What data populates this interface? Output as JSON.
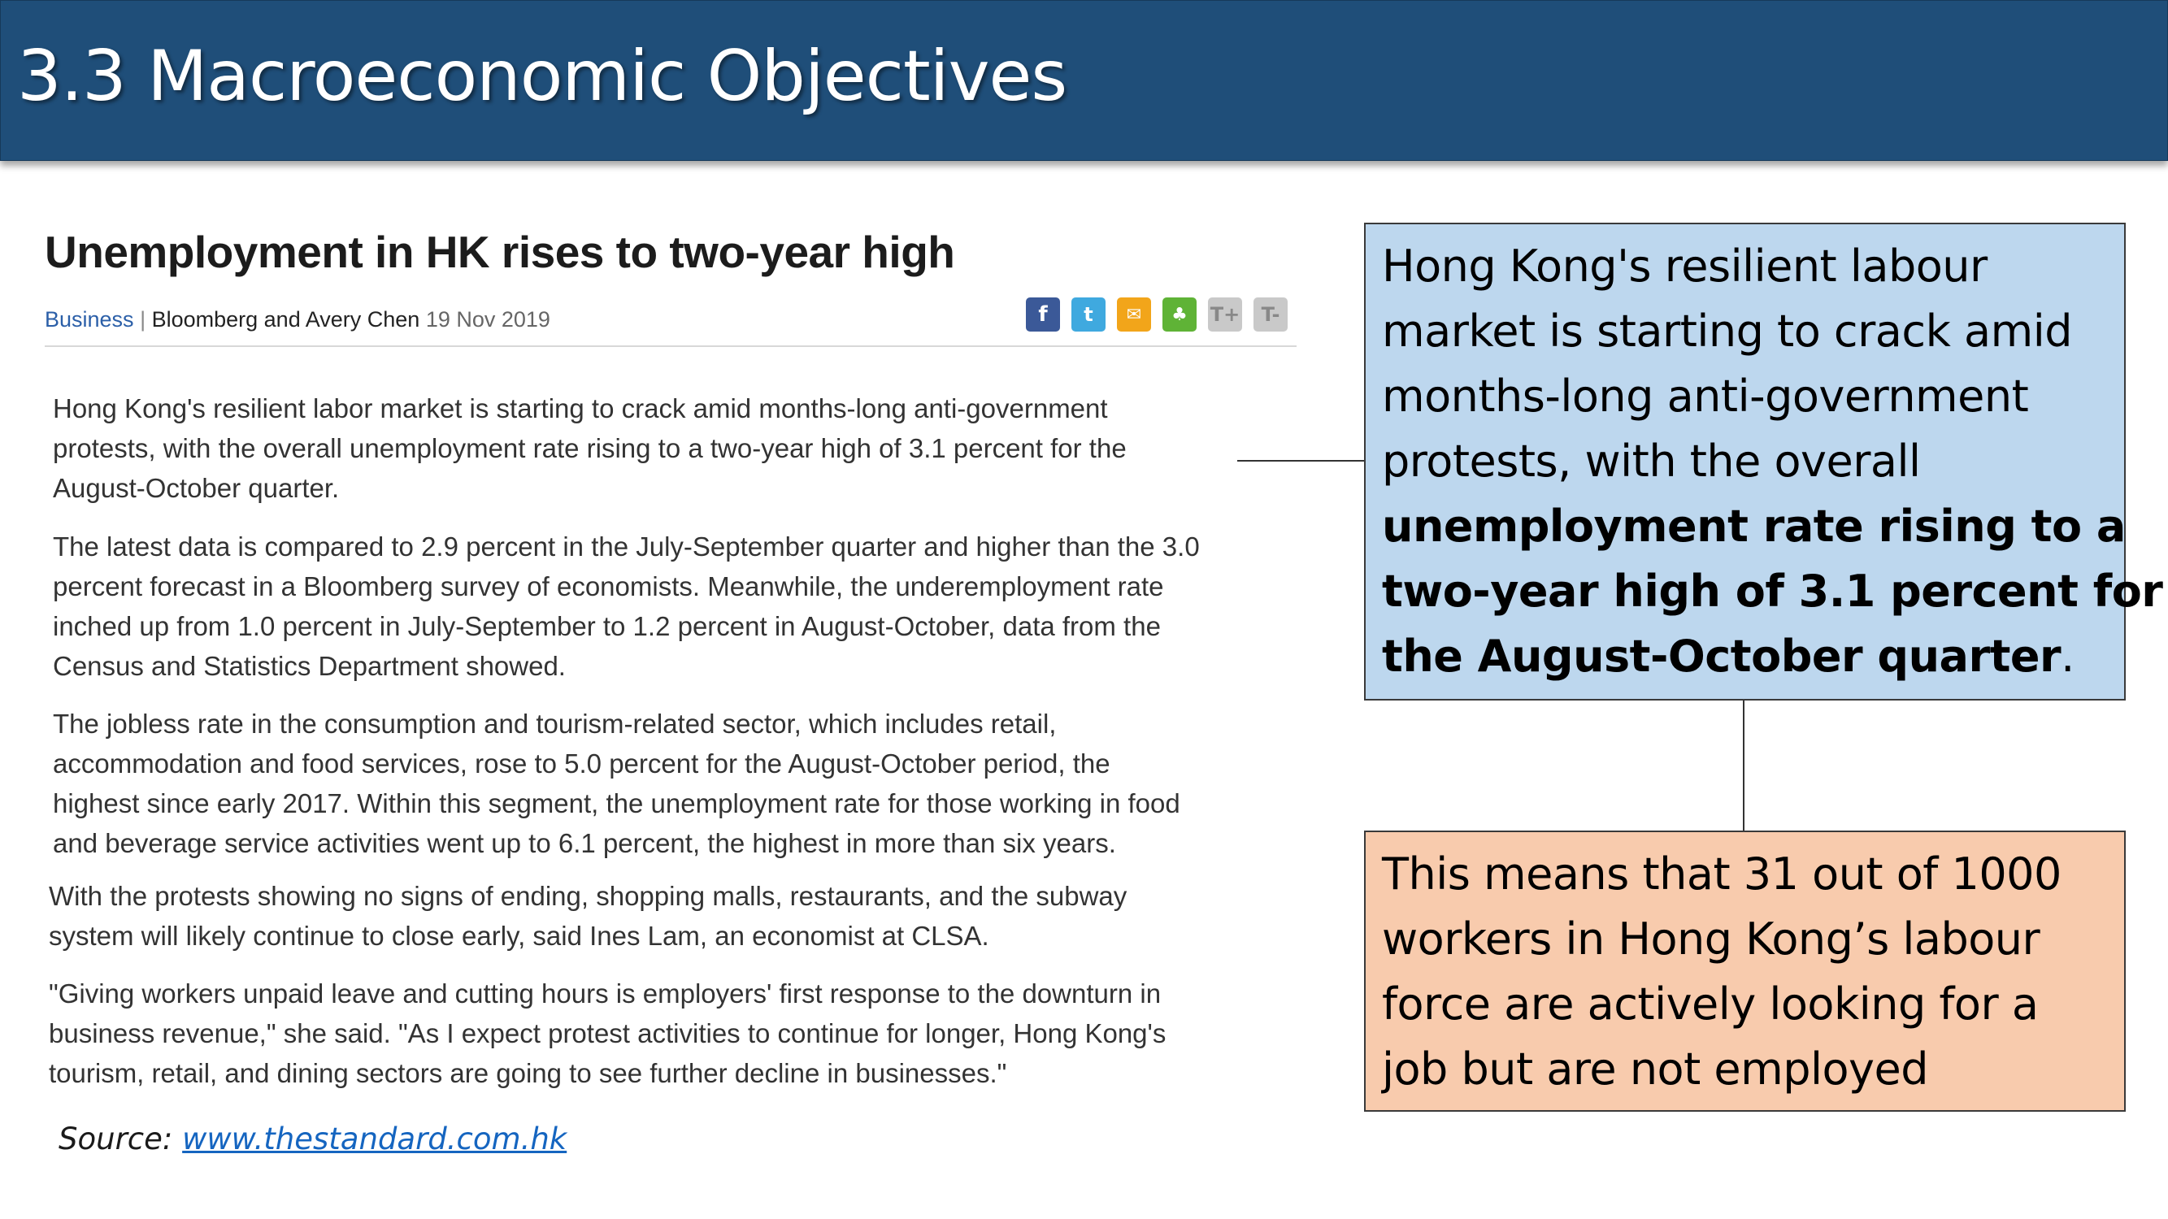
{
  "slide": {
    "title": "3.3 Macroeconomic Objectives"
  },
  "article": {
    "headline": "Unemployment in HK rises to two-year high",
    "byline": {
      "section": "Business",
      "separator": " | ",
      "authors": "Bloomberg and Avery Chen",
      "date": "19 Nov 2019"
    },
    "share_icons": [
      {
        "name": "facebook-icon",
        "glyph": "f"
      },
      {
        "name": "twitter-icon",
        "glyph": "t"
      },
      {
        "name": "email-icon",
        "glyph": "✉"
      },
      {
        "name": "wechat-icon",
        "glyph": "♣"
      },
      {
        "name": "text-larger-icon",
        "glyph": "T+"
      },
      {
        "name": "text-smaller-icon",
        "glyph": "T-"
      }
    ],
    "paragraphs": [
      [
        "Hong Kong's resilient labor market is starting to crack amid months-long anti-government",
        "protests, with the overall unemployment rate rising to a two-year high of 3.1 percent for the",
        "August-October quarter."
      ],
      [
        "The latest data is compared to 2.9 percent in the July-September quarter and higher than the 3.0",
        "percent forecast in a Bloomberg survey of economists. Meanwhile, the underemployment rate",
        "inched up from 1.0 percent in July-September to 1.2 percent in August-October, data from the",
        "Census and Statistics Department showed."
      ],
      [
        "The jobless rate in the consumption and tourism-related sector, which includes retail,",
        "accommodation and food services, rose to 5.0 percent for the August-October period, the",
        "highest since early 2017. Within this segment, the unemployment rate for those working in food",
        "and beverage service activities went up to 6.1 percent, the highest in more than six years."
      ],
      [
        "With the protests showing no signs of ending, shopping malls, restaurants, and the subway",
        "system will likely continue to close early, said Ines Lam, an economist at CLSA."
      ],
      [
        "\"Giving workers unpaid leave and cutting hours is employers' first response to the downturn in",
        "business revenue,\" she said. \"As I expect protest activities to continue for longer, Hong Kong's",
        "tourism, retail, and dining sectors are going to see further decline in businesses.\""
      ]
    ]
  },
  "source": {
    "label": "Source: ",
    "link_text": "www.thestandard.com.hk"
  },
  "callouts": {
    "blue": {
      "lines": [
        "Hong Kong's resilient labour",
        "market is starting to crack amid",
        "months-long anti-government",
        "protests, with the overall"
      ],
      "bold_lines": [
        "unemployment rate rising to a",
        "two-year high of 3.1 percent for",
        "the August-October quarter"
      ],
      "trailing": "."
    },
    "orange": {
      "lines": [
        "This means that 31 out of 1000",
        "workers in Hong Kong’s labour",
        "force are actively looking for a",
        "job but are not employed"
      ]
    }
  },
  "colors": {
    "title_bar": "#1f4e79",
    "callout_blue": "#bdd7ee",
    "callout_orange": "#f8cbad",
    "link": "#1565c0"
  }
}
